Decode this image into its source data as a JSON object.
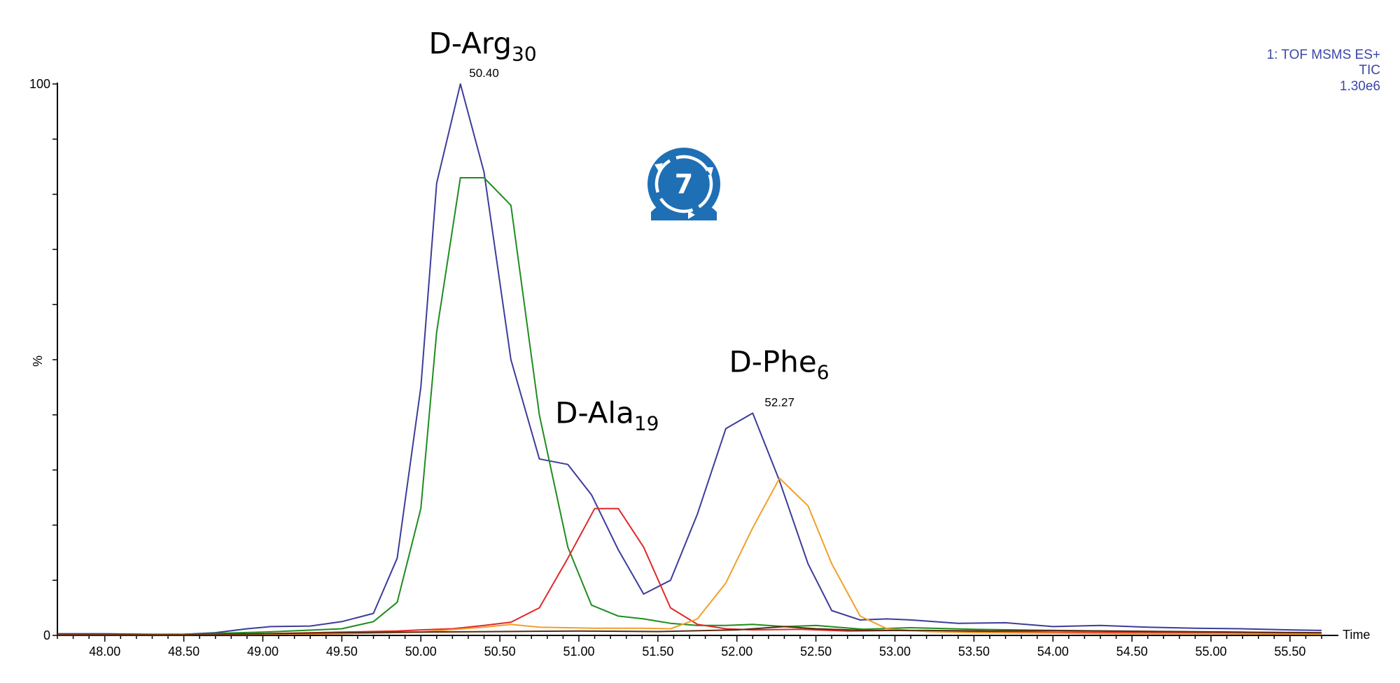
{
  "chart_data": {
    "type": "line",
    "xlabel": "Time",
    "ylabel": "%",
    "xlim": [
      47.7,
      55.7
    ],
    "ylim": [
      0,
      100
    ],
    "x_ticks": [
      "48.00",
      "48.50",
      "49.00",
      "49.50",
      "50.00",
      "50.50",
      "51.00",
      "51.50",
      "52.00",
      "52.50",
      "53.00",
      "53.50",
      "54.00",
      "54.50",
      "55.00",
      "55.50"
    ],
    "y_ticks": [
      "0",
      "100"
    ],
    "info_lines": [
      "1: TOF MSMS ES+",
      "TIC",
      "1.30e6"
    ],
    "peak_labels": [
      {
        "text": "50.40",
        "x": 50.4,
        "y": 100
      },
      {
        "text": "52.27",
        "x": 52.27,
        "y": 40.3
      }
    ],
    "annotations": [
      {
        "main": "D-Arg",
        "sub": "30",
        "x": 50.05,
        "y": 105.5
      },
      {
        "main": "D-Ala",
        "sub": "19",
        "x": 50.85,
        "y": 38.5
      },
      {
        "main": "D-Phe",
        "sub": "6",
        "x": 51.95,
        "y": 47.8
      }
    ],
    "series": [
      {
        "color": "#3c3c9a",
        "x": [
          47.7,
          48.0,
          48.3,
          48.5,
          48.7,
          48.9,
          49.05,
          49.3,
          49.5,
          49.7,
          49.85,
          50.0,
          50.1,
          50.25,
          50.4,
          50.57,
          50.75,
          50.93,
          51.08,
          51.25,
          51.41,
          51.58,
          51.75,
          51.93,
          52.1,
          52.27,
          52.45,
          52.6,
          52.78,
          52.95,
          53.1,
          53.4,
          53.7,
          54.0,
          54.3,
          54.6,
          54.9,
          55.2,
          55.5,
          55.7
        ],
        "y": [
          0.3,
          0.3,
          0.2,
          0.2,
          0.5,
          1.2,
          1.6,
          1.7,
          2.5,
          4.0,
          14.0,
          45.0,
          82.0,
          100.0,
          84.0,
          50.0,
          32.0,
          31.0,
          25.5,
          15.5,
          7.5,
          10.0,
          22.0,
          37.5,
          40.3,
          28.0,
          13.0,
          4.5,
          2.8,
          3.0,
          2.8,
          2.2,
          2.3,
          1.6,
          1.8,
          1.5,
          1.3,
          1.2,
          1.0,
          0.9
        ]
      },
      {
        "color": "#1e8c1e",
        "x": [
          47.7,
          48.5,
          49.0,
          49.5,
          49.7,
          49.85,
          50.0,
          50.1,
          50.25,
          50.4,
          50.57,
          50.75,
          50.93,
          51.08,
          51.25,
          51.41,
          51.58,
          51.75,
          51.93,
          52.1,
          52.3,
          52.5,
          52.8,
          53.1,
          53.5,
          54.0,
          54.5,
          55.0,
          55.5,
          55.7
        ],
        "y": [
          0.1,
          0.2,
          0.6,
          1.2,
          2.5,
          6.0,
          23.0,
          55.0,
          83.0,
          83.0,
          78.0,
          40.0,
          16.0,
          5.5,
          3.5,
          3.0,
          2.2,
          1.8,
          1.8,
          2.0,
          1.6,
          1.8,
          1.1,
          1.4,
          1.1,
          0.9,
          0.7,
          0.6,
          0.4,
          0.4
        ]
      },
      {
        "color": "#e02828",
        "x": [
          47.7,
          48.5,
          49.0,
          49.5,
          49.85,
          50.0,
          50.2,
          50.4,
          50.57,
          50.75,
          50.93,
          51.1,
          51.25,
          51.41,
          51.58,
          51.75,
          51.93,
          52.1,
          52.4,
          52.7,
          53.0,
          53.5,
          54.0,
          54.5,
          55.0,
          55.5,
          55.7
        ],
        "y": [
          0.1,
          0.1,
          0.3,
          0.6,
          0.8,
          1.0,
          1.2,
          1.8,
          2.4,
          5.0,
          14.0,
          23.0,
          23.0,
          16.0,
          5.0,
          2.0,
          1.2,
          1.0,
          1.1,
          0.8,
          0.9,
          0.7,
          0.6,
          0.5,
          0.4,
          0.3,
          0.3
        ]
      },
      {
        "color": "#f0a02a",
        "x": [
          47.7,
          48.5,
          49.0,
          49.5,
          50.0,
          50.4,
          50.57,
          50.75,
          51.1,
          51.41,
          51.58,
          51.75,
          51.93,
          52.1,
          52.27,
          52.45,
          52.6,
          52.78,
          52.95,
          53.2,
          53.5,
          54.0,
          54.5,
          55.0,
          55.7
        ],
        "y": [
          0.1,
          0.1,
          0.2,
          0.3,
          0.6,
          1.5,
          2.0,
          1.5,
          1.3,
          1.3,
          1.2,
          3.0,
          9.5,
          19.5,
          28.5,
          23.5,
          13.0,
          3.5,
          1.2,
          0.7,
          0.5,
          0.4,
          0.3,
          0.3,
          0.2
        ]
      },
      {
        "color": "#5a2a10",
        "x": [
          47.7,
          48.5,
          49.0,
          49.5,
          50.0,
          50.5,
          51.0,
          51.5,
          52.0,
          52.3,
          52.5,
          52.8,
          53.2,
          53.6,
          54.0,
          54.4,
          54.8,
          55.2,
          55.7
        ],
        "y": [
          0.1,
          0.1,
          0.3,
          0.5,
          0.6,
          0.7,
          0.8,
          0.7,
          1.0,
          1.6,
          1.2,
          0.9,
          0.9,
          0.8,
          0.9,
          0.8,
          0.7,
          0.6,
          0.5
        ]
      }
    ]
  },
  "logo": {
    "icon": "cycle-count-badge-icon",
    "number": "7",
    "color": "#1f6fb5"
  }
}
